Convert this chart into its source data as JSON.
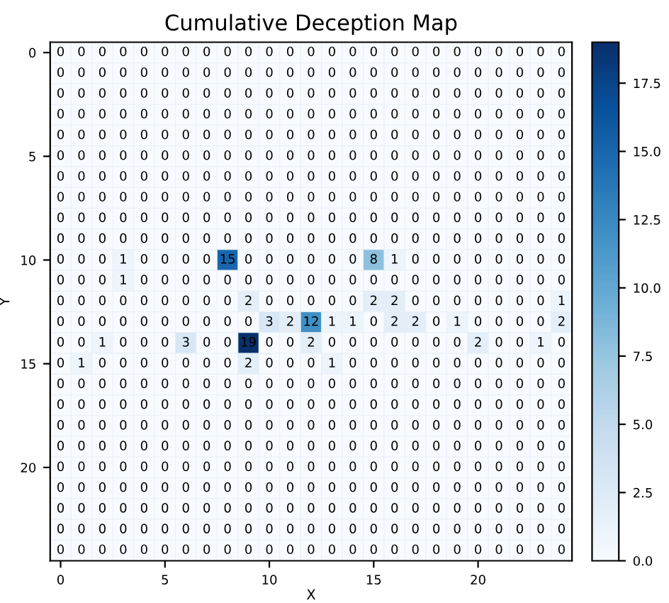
{
  "chart_data": {
    "type": "heatmap",
    "title": "Cumulative Deception Map",
    "xlabel": "X",
    "ylabel": "Y",
    "categories": [
      "0",
      null,
      null,
      null,
      null,
      "5",
      null,
      null,
      null,
      null,
      "10",
      null,
      null,
      null,
      null,
      "15",
      null,
      null,
      null,
      null,
      "20",
      null,
      null,
      null,
      null
    ],
    "y_categories": [
      "0",
      null,
      null,
      null,
      null,
      "5",
      null,
      null,
      null,
      null,
      "10",
      null,
      null,
      null,
      null,
      "15",
      null,
      null,
      null,
      null,
      "20",
      null,
      null,
      null,
      null
    ],
    "cells": [
      [
        0,
        0,
        0,
        0,
        0,
        0,
        0,
        0,
        0,
        0,
        0,
        0,
        0,
        0,
        0,
        0,
        0,
        0,
        0,
        0,
        0,
        0,
        0,
        0,
        0
      ],
      [
        0,
        0,
        0,
        0,
        0,
        0,
        0,
        0,
        0,
        0,
        0,
        0,
        0,
        0,
        0,
        0,
        0,
        0,
        0,
        0,
        0,
        0,
        0,
        0,
        0
      ],
      [
        0,
        0,
        0,
        0,
        0,
        0,
        0,
        0,
        0,
        0,
        0,
        0,
        0,
        0,
        0,
        0,
        0,
        0,
        0,
        0,
        0,
        0,
        0,
        0,
        0
      ],
      [
        0,
        0,
        0,
        0,
        0,
        0,
        0,
        0,
        0,
        0,
        0,
        0,
        0,
        0,
        0,
        0,
        0,
        0,
        0,
        0,
        0,
        0,
        0,
        0,
        0
      ],
      [
        0,
        0,
        0,
        0,
        0,
        0,
        0,
        0,
        0,
        0,
        0,
        0,
        0,
        0,
        0,
        0,
        0,
        0,
        0,
        0,
        0,
        0,
        0,
        0,
        0
      ],
      [
        0,
        0,
        0,
        0,
        0,
        0,
        0,
        0,
        0,
        0,
        0,
        0,
        0,
        0,
        0,
        0,
        0,
        0,
        0,
        0,
        0,
        0,
        0,
        0,
        0
      ],
      [
        0,
        0,
        0,
        0,
        0,
        0,
        0,
        0,
        0,
        0,
        0,
        0,
        0,
        0,
        0,
        0,
        0,
        0,
        0,
        0,
        0,
        0,
        0,
        0,
        0
      ],
      [
        0,
        0,
        0,
        0,
        0,
        0,
        0,
        0,
        0,
        0,
        0,
        0,
        0,
        0,
        0,
        0,
        0,
        0,
        0,
        0,
        0,
        0,
        0,
        0,
        0
      ],
      [
        0,
        0,
        0,
        0,
        0,
        0,
        0,
        0,
        0,
        0,
        0,
        0,
        0,
        0,
        0,
        0,
        0,
        0,
        0,
        0,
        0,
        0,
        0,
        0,
        0
      ],
      [
        0,
        0,
        0,
        0,
        0,
        0,
        0,
        0,
        0,
        0,
        0,
        0,
        0,
        0,
        0,
        0,
        0,
        0,
        0,
        0,
        0,
        0,
        0,
        0,
        0
      ],
      [
        0,
        0,
        0,
        1,
        0,
        0,
        0,
        0,
        15,
        0,
        0,
        0,
        0,
        0,
        0,
        8,
        1,
        0,
        0,
        0,
        0,
        0,
        0,
        0,
        0
      ],
      [
        0,
        0,
        0,
        1,
        0,
        0,
        0,
        0,
        0,
        0,
        0,
        0,
        0,
        0,
        0,
        0,
        0,
        0,
        0,
        0,
        0,
        0,
        0,
        0,
        0
      ],
      [
        0,
        0,
        0,
        0,
        0,
        0,
        0,
        0,
        0,
        2,
        0,
        0,
        0,
        0,
        0,
        2,
        2,
        0,
        0,
        0,
        0,
        0,
        0,
        0,
        1
      ],
      [
        0,
        0,
        0,
        0,
        0,
        0,
        0,
        0,
        0,
        0,
        3,
        2,
        12,
        1,
        1,
        0,
        2,
        2,
        0,
        1,
        0,
        0,
        0,
        0,
        2
      ],
      [
        0,
        0,
        1,
        0,
        0,
        0,
        3,
        0,
        0,
        19,
        0,
        0,
        2,
        0,
        0,
        0,
        0,
        0,
        0,
        0,
        2,
        0,
        0,
        1,
        0
      ],
      [
        0,
        1,
        0,
        0,
        0,
        0,
        0,
        0,
        0,
        2,
        0,
        0,
        0,
        1,
        0,
        0,
        0,
        0,
        0,
        0,
        0,
        0,
        0,
        0,
        0
      ],
      [
        0,
        0,
        0,
        0,
        0,
        0,
        0,
        0,
        0,
        0,
        0,
        0,
        0,
        0,
        0,
        0,
        0,
        0,
        0,
        0,
        0,
        0,
        0,
        0,
        0
      ],
      [
        0,
        0,
        0,
        0,
        0,
        0,
        0,
        0,
        0,
        0,
        0,
        0,
        0,
        0,
        0,
        0,
        0,
        0,
        0,
        0,
        0,
        0,
        0,
        0,
        0
      ],
      [
        0,
        0,
        0,
        0,
        0,
        0,
        0,
        0,
        0,
        0,
        0,
        0,
        0,
        0,
        0,
        0,
        0,
        0,
        0,
        0,
        0,
        0,
        0,
        0,
        0
      ],
      [
        0,
        0,
        0,
        0,
        0,
        0,
        0,
        0,
        0,
        0,
        0,
        0,
        0,
        0,
        0,
        0,
        0,
        0,
        0,
        0,
        0,
        0,
        0,
        0,
        0
      ],
      [
        0,
        0,
        0,
        0,
        0,
        0,
        0,
        0,
        0,
        0,
        0,
        0,
        0,
        0,
        0,
        0,
        0,
        0,
        0,
        0,
        0,
        0,
        0,
        0,
        0
      ],
      [
        0,
        0,
        0,
        0,
        0,
        0,
        0,
        0,
        0,
        0,
        0,
        0,
        0,
        0,
        0,
        0,
        0,
        0,
        0,
        0,
        0,
        0,
        0,
        0,
        0
      ],
      [
        0,
        0,
        0,
        0,
        0,
        0,
        0,
        0,
        0,
        0,
        0,
        0,
        0,
        0,
        0,
        0,
        0,
        0,
        0,
        0,
        0,
        0,
        0,
        0,
        0
      ],
      [
        0,
        0,
        0,
        0,
        0,
        0,
        0,
        0,
        0,
        0,
        0,
        0,
        0,
        0,
        0,
        0,
        0,
        0,
        0,
        0,
        0,
        0,
        0,
        0,
        0
      ],
      [
        0,
        0,
        0,
        0,
        0,
        0,
        0,
        0,
        0,
        0,
        0,
        0,
        0,
        0,
        0,
        0,
        0,
        0,
        0,
        0,
        0,
        0,
        0,
        0,
        0
      ]
    ],
    "data_labels": true,
    "clim": [
      0,
      19
    ],
    "cticks": [
      {
        "value": 0,
        "label": "0.0"
      },
      {
        "value": 2.5,
        "label": "2.5"
      },
      {
        "value": 5,
        "label": "5.0"
      },
      {
        "value": 7.5,
        "label": "7.5"
      },
      {
        "value": 10,
        "label": "10.0"
      },
      {
        "value": 12.5,
        "label": "12.5"
      },
      {
        "value": 15,
        "label": "15.0"
      },
      {
        "value": 17.5,
        "label": "17.5"
      }
    ]
  }
}
